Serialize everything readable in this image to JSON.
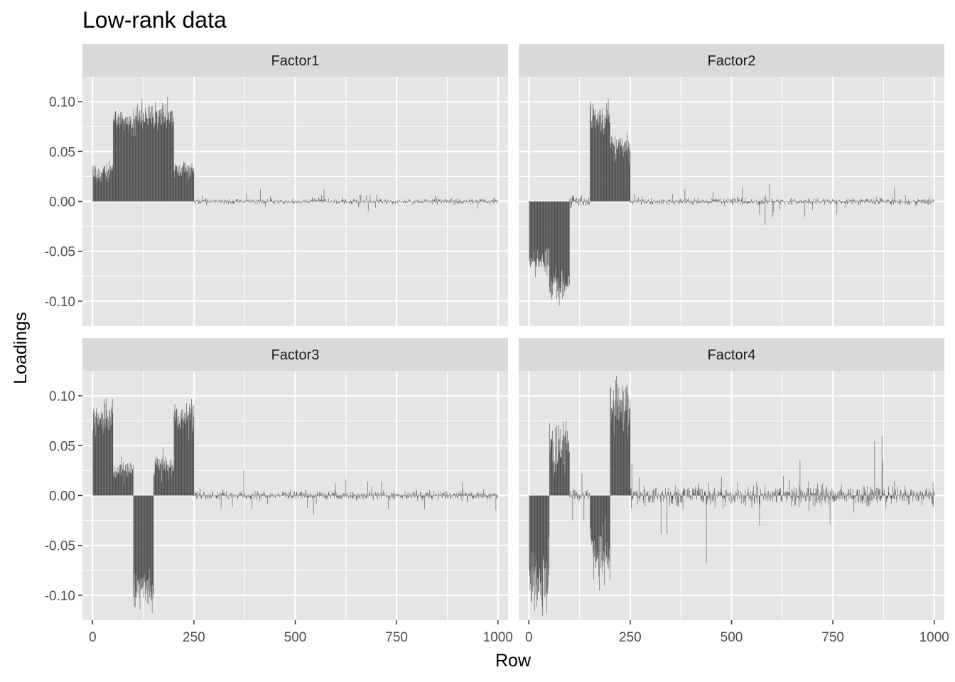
{
  "chart_data": {
    "type": "bar",
    "title": "Low-rank data",
    "xlabel": "Row",
    "ylabel": "Loadings",
    "xlim": [
      -25,
      1025
    ],
    "ylim": [
      -0.125,
      0.125
    ],
    "x_ticks": [
      0,
      250,
      500,
      750,
      1000
    ],
    "x_tick_labels": [
      "0",
      "250",
      "500",
      "750",
      "1000"
    ],
    "y_ticks": [
      0.1,
      0.05,
      0.0,
      -0.05,
      -0.1
    ],
    "y_tick_labels": [
      "0.10",
      "0.05",
      "0.00",
      "-0.05",
      "-0.10"
    ],
    "grid": true,
    "n_rows": 1000,
    "bar_color": "#4d4d4d",
    "panel_background": "#e5e5e5",
    "strip_background": "#d9d9d9",
    "grid_color": "#ffffff",
    "facets": [
      {
        "name": "Factor1",
        "segments": [
          {
            "from": 1,
            "to": 50,
            "level": 0.03
          },
          {
            "from": 51,
            "to": 100,
            "level": 0.078
          },
          {
            "from": 101,
            "to": 200,
            "level": 0.085
          },
          {
            "from": 201,
            "to": 250,
            "level": 0.033
          }
        ],
        "noise_scale": 0.004
      },
      {
        "name": "Factor2",
        "segments": [
          {
            "from": 1,
            "to": 50,
            "level": -0.06
          },
          {
            "from": 51,
            "to": 100,
            "level": -0.085
          },
          {
            "from": 101,
            "to": 150,
            "level": 0.0
          },
          {
            "from": 151,
            "to": 200,
            "level": 0.082
          },
          {
            "from": 201,
            "to": 250,
            "level": 0.055
          }
        ],
        "noise_scale": 0.005
      },
      {
        "name": "Factor3",
        "segments": [
          {
            "from": 1,
            "to": 50,
            "level": 0.078
          },
          {
            "from": 51,
            "to": 100,
            "level": 0.025
          },
          {
            "from": 101,
            "to": 150,
            "level": -0.095
          },
          {
            "from": 151,
            "to": 200,
            "level": 0.03
          },
          {
            "from": 201,
            "to": 250,
            "level": 0.078
          }
        ],
        "noise_scale": 0.006
      },
      {
        "name": "Factor4",
        "segments": [
          {
            "from": 1,
            "to": 50,
            "level": -0.085
          },
          {
            "from": 51,
            "to": 100,
            "level": 0.05
          },
          {
            "from": 101,
            "to": 150,
            "level": 0.0
          },
          {
            "from": 151,
            "to": 200,
            "level": -0.06
          },
          {
            "from": 201,
            "to": 250,
            "level": 0.09
          }
        ],
        "noise_scale": 0.014
      }
    ]
  }
}
